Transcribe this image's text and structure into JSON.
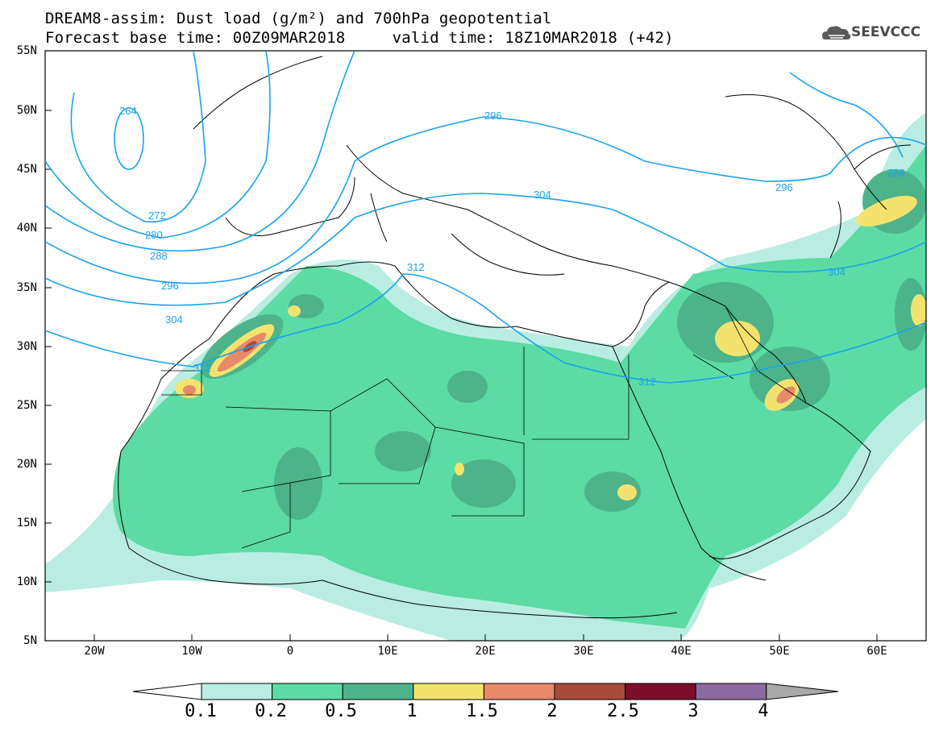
{
  "header": {
    "title_line1": "DREAM8-assim: Dust load (g/m²) and 700hPa geopotential",
    "title_line2": "Forecast base time: 00Z09MAR2018     valid time: 18Z10MAR2018 (+42)",
    "logo_text": "SEEVCCC"
  },
  "map": {
    "lat_labels": [
      "55N",
      "50N",
      "45N",
      "40N",
      "35N",
      "30N",
      "25N",
      "20N",
      "15N",
      "10N",
      "5N"
    ],
    "lon_labels": [
      "20W",
      "10W",
      "0",
      "10E",
      "20E",
      "30E",
      "40E",
      "50E",
      "60E"
    ],
    "contour_labels": [
      "264",
      "272",
      "280",
      "288",
      "296",
      "304",
      "312",
      "296",
      "304",
      "312",
      "296",
      "288",
      "304",
      "312"
    ],
    "contour_color": "#1aa3ea",
    "land_border_color": "#000000"
  },
  "legend": {
    "ticks": [
      "0.1",
      "0.2",
      "0.5",
      "1",
      "1.5",
      "2",
      "2.5",
      "3",
      "4"
    ],
    "colors": [
      "#ffffff",
      "#b9ede2",
      "#5cdba5",
      "#4cb38a",
      "#f3e36e",
      "#e8896a",
      "#a94b3a",
      "#7b0f2b",
      "#8b6aa0",
      "#a8a8a8"
    ]
  }
}
